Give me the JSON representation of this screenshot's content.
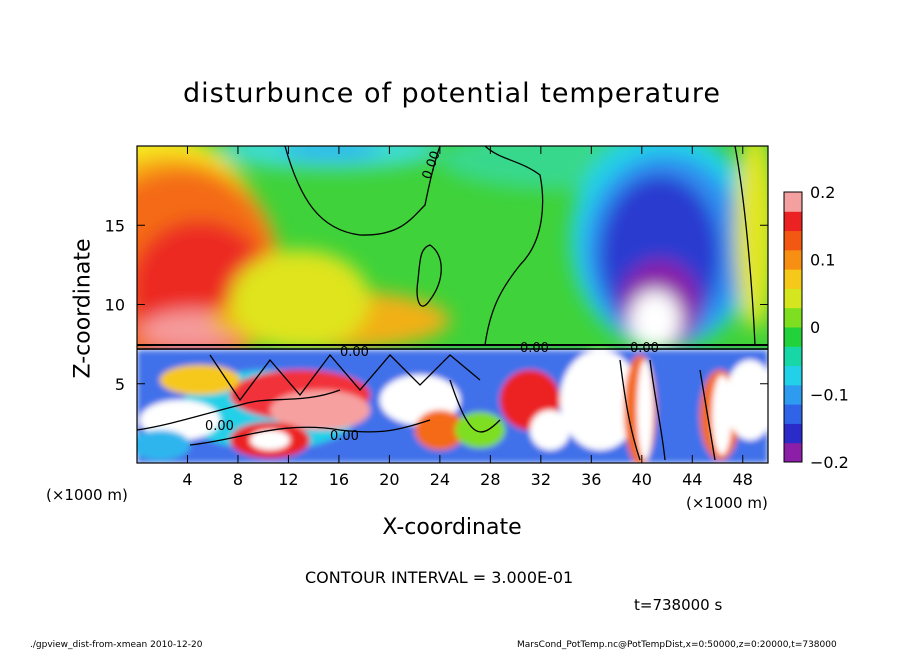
{
  "chart_data": {
    "type": "heatmap",
    "title": "disturbunce of potential temperature",
    "xlabel": "X-coordinate",
    "ylabel": "Z-coordinate",
    "x_unit": "(×1000 m)",
    "xlim": [
      0,
      50
    ],
    "ylim": [
      0,
      20
    ],
    "x_ticks": [
      "4",
      "8",
      "12",
      "16",
      "20",
      "24",
      "28",
      "32",
      "36",
      "40",
      "44",
      "48"
    ],
    "y_ticks": [
      "5",
      "10",
      "15"
    ],
    "colorbar": {
      "range": [
        -0.2,
        0.2
      ],
      "ticks": [
        "0.2",
        "0.1",
        "0",
        "−0.1",
        "−0.2"
      ],
      "colors": [
        "#8b1fa8",
        "#2a2bc8",
        "#2f63e8",
        "#2d9bf0",
        "#22d0e8",
        "#18d7a6",
        "#22d23a",
        "#7ede20",
        "#d6e61e",
        "#f5c81a",
        "#f78f12",
        "#f25812",
        "#ec2222",
        "#f3a0a0"
      ]
    },
    "contour_labels": [
      "0.00",
      "0.00",
      "0.00",
      "0.00",
      "0.00",
      "0.00"
    ],
    "contour_interval": "CONTOUR INTERVAL = 3.000E-01",
    "time": "t=738000 s"
  },
  "footer": {
    "left": "./gpview_dist-from-xmean  2010-12-20",
    "right": "MarsCond_PotTemp.nc@PotTempDist,x=0:50000,z=0:20000,t=738000"
  }
}
